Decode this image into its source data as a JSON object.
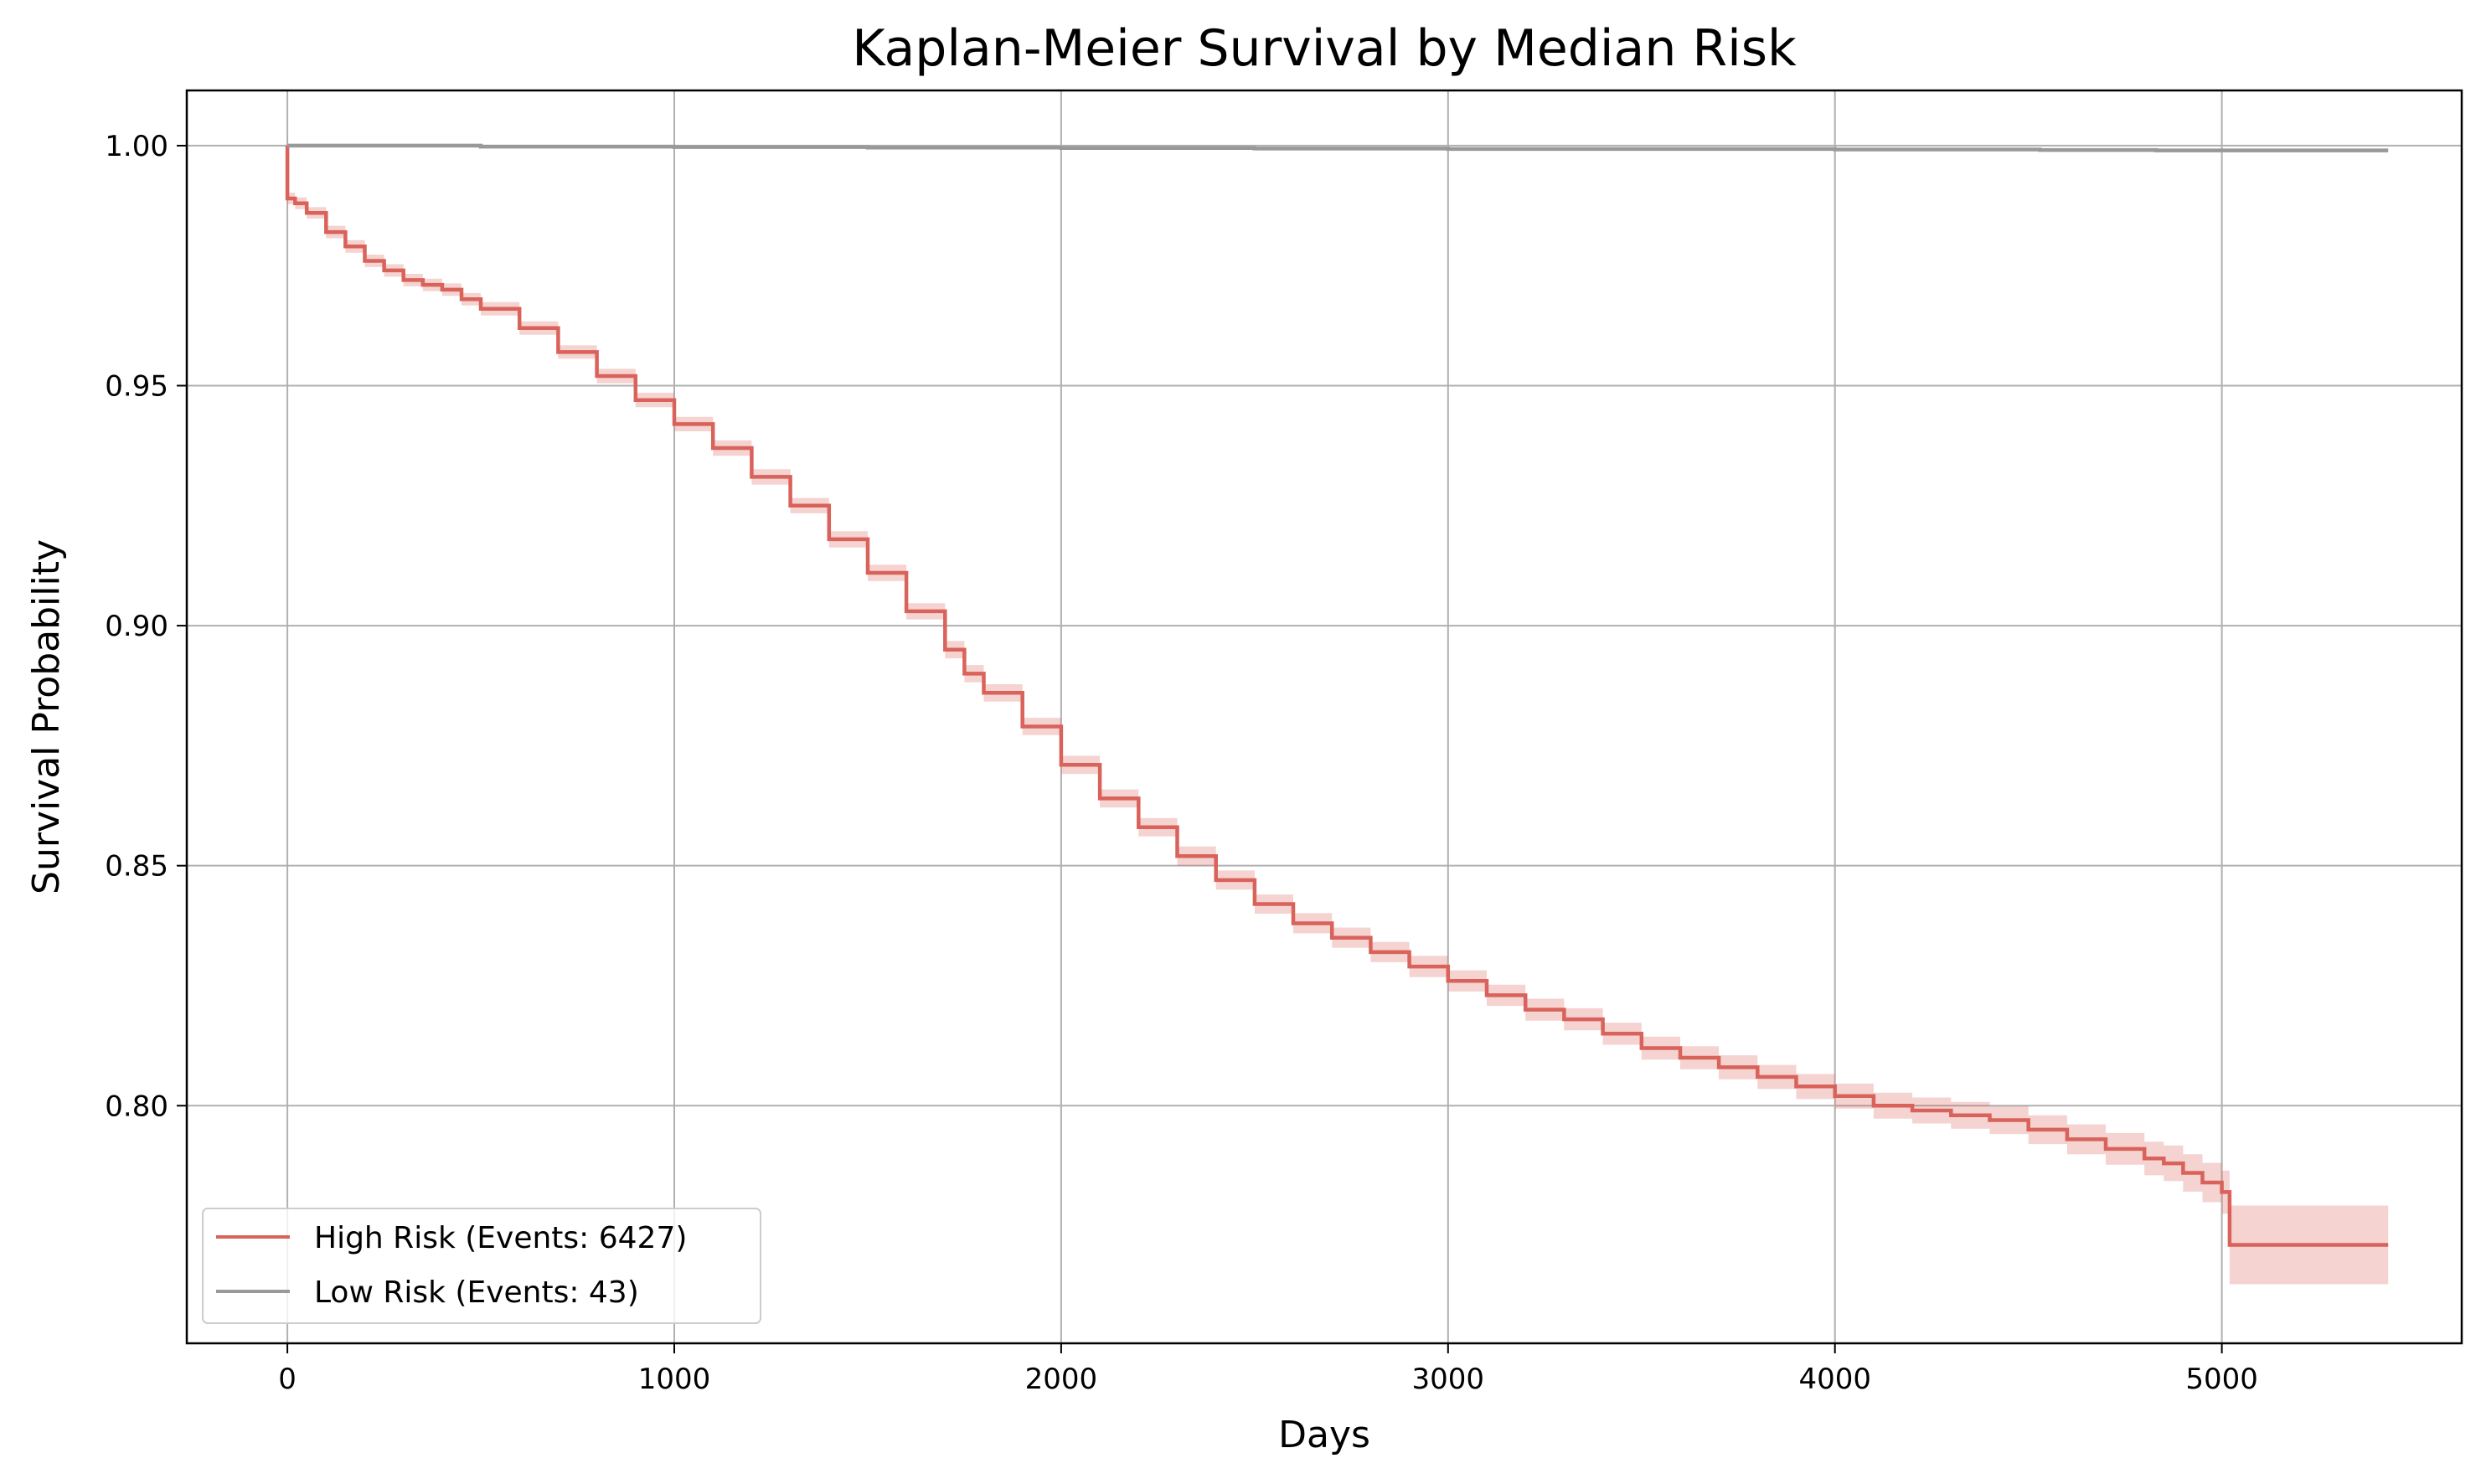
{
  "chart_data": {
    "type": "line",
    "title": "Kaplan-Meier Survival by Median Risk",
    "xlabel": "Days",
    "ylabel": "Survival Probability",
    "xlim": [
      -260,
      5620
    ],
    "ylim": [
      0.7505,
      1.0115
    ],
    "xticks": [
      0,
      1000,
      2000,
      3000,
      4000,
      5000
    ],
    "yticks": [
      0.8,
      0.85,
      0.9,
      0.95,
      1.0
    ],
    "xtick_labels": [
      "0",
      "1000",
      "2000",
      "3000",
      "4000",
      "5000"
    ],
    "ytick_labels": [
      "0.80",
      "0.85",
      "0.90",
      "0.95",
      "1.00"
    ],
    "grid": true,
    "legend_position": "lower-left",
    "series": [
      {
        "name": "High Risk (Events: 6427)",
        "color": "#d9625a",
        "step": true,
        "x": [
          0,
          0,
          20,
          50,
          100,
          150,
          200,
          250,
          300,
          350,
          400,
          450,
          500,
          600,
          700,
          800,
          900,
          1000,
          1100,
          1200,
          1300,
          1400,
          1500,
          1600,
          1700,
          1750,
          1800,
          1900,
          2000,
          2100,
          2200,
          2300,
          2400,
          2500,
          2600,
          2700,
          2800,
          2900,
          3000,
          3100,
          3200,
          3300,
          3400,
          3500,
          3600,
          3700,
          3800,
          3900,
          4000,
          4100,
          4200,
          4300,
          4400,
          4500,
          4600,
          4700,
          4800,
          4850,
          4900,
          4950,
          5000,
          5020,
          5020,
          5430
        ],
        "y": [
          1.0,
          0.989,
          0.988,
          0.986,
          0.982,
          0.979,
          0.976,
          0.974,
          0.972,
          0.971,
          0.97,
          0.968,
          0.966,
          0.962,
          0.957,
          0.952,
          0.947,
          0.942,
          0.937,
          0.931,
          0.925,
          0.918,
          0.911,
          0.903,
          0.895,
          0.89,
          0.886,
          0.879,
          0.871,
          0.864,
          0.858,
          0.852,
          0.847,
          0.842,
          0.838,
          0.835,
          0.832,
          0.829,
          0.826,
          0.823,
          0.82,
          0.818,
          0.815,
          0.812,
          0.81,
          0.808,
          0.806,
          0.804,
          0.802,
          0.8,
          0.799,
          0.798,
          0.797,
          0.795,
          0.793,
          0.791,
          0.789,
          0.788,
          0.786,
          0.784,
          0.782,
          0.782,
          0.771,
          0.771
        ],
        "ci_halfwidth": [
          0,
          0.0012,
          0.0012,
          0.0012,
          0.0013,
          0.0013,
          0.0013,
          0.0013,
          0.0013,
          0.0013,
          0.0013,
          0.0013,
          0.0014,
          0.0014,
          0.0014,
          0.0015,
          0.0015,
          0.0015,
          0.0016,
          0.0016,
          0.0016,
          0.0017,
          0.0017,
          0.0017,
          0.0018,
          0.0018,
          0.0018,
          0.0018,
          0.0019,
          0.0019,
          0.0019,
          0.002,
          0.002,
          0.002,
          0.0021,
          0.0021,
          0.0021,
          0.0022,
          0.0022,
          0.0022,
          0.0023,
          0.0023,
          0.0023,
          0.0024,
          0.0024,
          0.0025,
          0.0025,
          0.0026,
          0.0026,
          0.0027,
          0.0027,
          0.0028,
          0.0029,
          0.003,
          0.0031,
          0.0033,
          0.0035,
          0.0037,
          0.0039,
          0.0041,
          0.0045,
          0.0045,
          0.0082,
          0.0082
        ]
      },
      {
        "name": "Low Risk (Events: 43)",
        "color": "#999999",
        "step": true,
        "x": [
          0,
          500,
          1000,
          1500,
          2000,
          2500,
          3000,
          3500,
          4000,
          4500,
          4530,
          4830,
          4830,
          5430
        ],
        "y": [
          1.0,
          0.9998,
          0.9997,
          0.9996,
          0.9995,
          0.9994,
          0.9993,
          0.9993,
          0.9992,
          0.9992,
          0.9991,
          0.9991,
          0.999,
          0.999
        ],
        "ci_halfwidth": [
          0,
          0.0001,
          0.0001,
          0.0001,
          0.0002,
          0.0002,
          0.0002,
          0.0002,
          0.0002,
          0.0003,
          0.0003,
          0.0003,
          0.0004,
          0.0004
        ]
      }
    ]
  }
}
